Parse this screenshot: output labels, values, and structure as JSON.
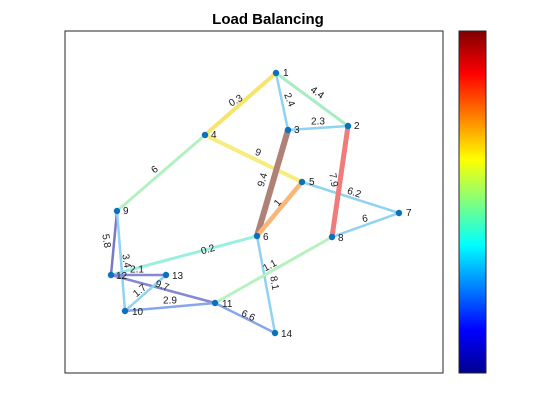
{
  "title": "Load Balancing",
  "colors": {
    "node_fill": "#0a72bd",
    "axes_border": "#262626",
    "background": "#ffffff"
  },
  "chart_data": {
    "type": "graph",
    "title": "Load Balancing",
    "colorbar": {
      "colormap": "jet",
      "tick_labels_shown": false
    },
    "nodes": [
      {
        "id": "1",
        "label": "1"
      },
      {
        "id": "2",
        "label": "2"
      },
      {
        "id": "3",
        "label": "3"
      },
      {
        "id": "4",
        "label": "4"
      },
      {
        "id": "5",
        "label": "5"
      },
      {
        "id": "6",
        "label": "6"
      },
      {
        "id": "7",
        "label": "7"
      },
      {
        "id": "8",
        "label": "8"
      },
      {
        "id": "9",
        "label": "9"
      },
      {
        "id": "10",
        "label": "10"
      },
      {
        "id": "11",
        "label": "11"
      },
      {
        "id": "12",
        "label": "12"
      },
      {
        "id": "13",
        "label": "13"
      },
      {
        "id": "14",
        "label": "14"
      }
    ],
    "edges": [
      {
        "from": "1",
        "to": "4",
        "label": "0.3",
        "color": "#f7e56b",
        "level": 0.62
      },
      {
        "from": "1",
        "to": "3",
        "label": "2.4",
        "color": "#8fd2f2",
        "level": 0.38
      },
      {
        "from": "1",
        "to": "2",
        "label": "4.4",
        "color": "#a8ecc4",
        "level": 0.45
      },
      {
        "from": "3",
        "to": "2",
        "label": "2.3",
        "color": "#8fd2f2",
        "level": 0.38
      },
      {
        "from": "4",
        "to": "5",
        "label": "9",
        "color": "#f7ec7c",
        "level": 0.63
      },
      {
        "from": "4",
        "to": "9",
        "label": "6",
        "color": "#b3f0c2",
        "level": 0.48
      },
      {
        "from": "3",
        "to": "6",
        "label": "9.4",
        "color": "#b08176",
        "level": 0.95
      },
      {
        "from": "5",
        "to": "6",
        "label": "1",
        "color": "#f9b679",
        "level": 0.78
      },
      {
        "from": "5",
        "to": "7",
        "label": "6.2",
        "color": "#8fd2f2",
        "level": 0.38
      },
      {
        "from": "2",
        "to": "8",
        "label": "7.9",
        "color": "#f07b7b",
        "level": 0.85
      },
      {
        "from": "8",
        "to": "7",
        "label": "6",
        "color": "#8fd2f2",
        "level": 0.38
      },
      {
        "from": "6",
        "to": "12",
        "label": "0.2",
        "color": "#9af0e0",
        "level": 0.42
      },
      {
        "from": "6",
        "to": "14",
        "label": "8.1",
        "color": "#8fd2f2",
        "level": 0.38
      },
      {
        "from": "8",
        "to": "11",
        "label": "1.1",
        "color": "#b5f2c0",
        "level": 0.48
      },
      {
        "from": "9",
        "to": "12",
        "label": "5.8",
        "color": "#7b78c8",
        "level": 0.15
      },
      {
        "from": "9",
        "to": "10",
        "label": "3.4",
        "color": "#8fd2f2",
        "level": 0.38
      },
      {
        "from": "12",
        "to": "13",
        "label": "2.1",
        "color": "#8488d6",
        "level": 0.18
      },
      {
        "from": "12",
        "to": "11",
        "label": "9.7",
        "color": "#8488d6",
        "level": 0.18
      },
      {
        "from": "10",
        "to": "13",
        "label": "1.7",
        "color": "#8fd2f2",
        "level": 0.38
      },
      {
        "from": "10",
        "to": "11",
        "label": "2.9",
        "color": "#88a6ec",
        "level": 0.28
      },
      {
        "from": "11",
        "to": "14",
        "label": "6.6",
        "color": "#88a6ec",
        "level": 0.28
      }
    ]
  }
}
